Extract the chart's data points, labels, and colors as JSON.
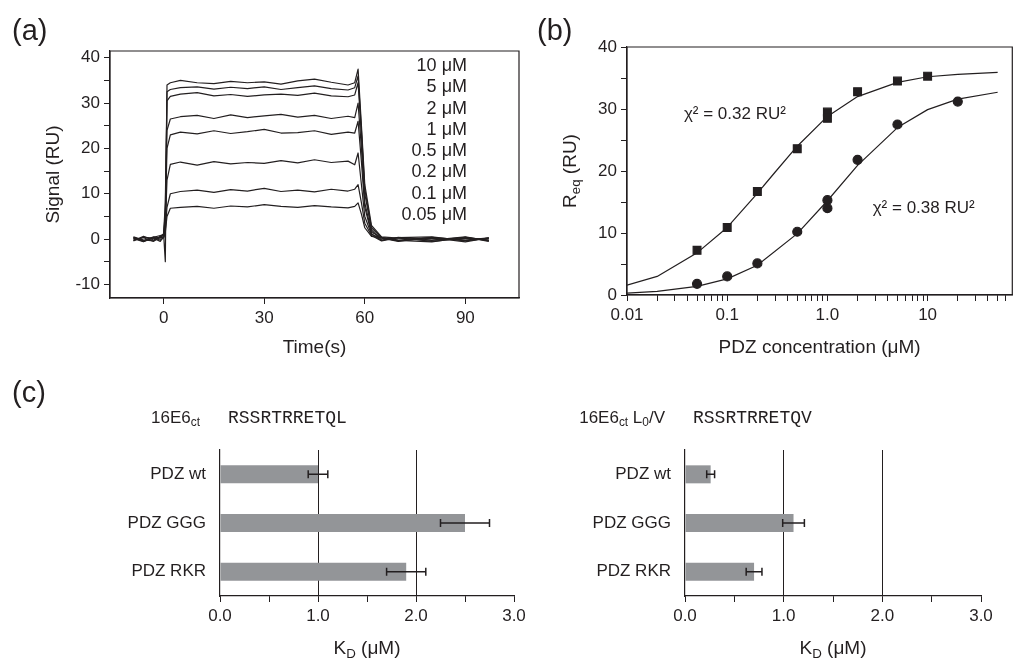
{
  "chart_data": [
    {
      "type": "line",
      "annotations": [
        "(a)",
        "10 μM",
        "5 μM",
        "2 μM",
        "1 μM",
        "0.5 μM",
        "0.2 μM",
        "0.1 μM",
        "0.05 μM"
      ],
      "xlabel": "Time(s)",
      "ylabel": "Signal (RU)",
      "marker": "none",
      "xlim": [
        -16,
        106
      ],
      "ylim": [
        -13,
        41.5
      ],
      "xticks": [
        0,
        30,
        60,
        90
      ],
      "yticks": [
        -10,
        {
          "value": -5,
          "label": null
        },
        0,
        {
          "value": 5,
          "label": null
        },
        10,
        {
          "value": 15,
          "label": null
        },
        20,
        {
          "value": 25,
          "label": null
        },
        30,
        {
          "value": 35,
          "label": null
        },
        40
      ],
      "x": [
        -9,
        -6,
        -3,
        -1,
        0,
        0.5,
        1,
        2,
        5,
        10,
        15,
        20,
        25,
        30,
        35,
        40,
        45,
        50,
        55,
        57,
        58,
        59,
        60,
        62,
        65,
        70,
        80,
        90,
        97
      ],
      "series": [
        {
          "color": "#231f20",
          "values": [
            0.3,
            -0.5,
            0.4,
            0.8,
            1,
            -5,
            34,
            34.5,
            35,
            34.5,
            34.3,
            34.8,
            34.5,
            34.7,
            34.2,
            34.9,
            35.3,
            34.6,
            34,
            34.5,
            37.5,
            25,
            12,
            3,
            0.5,
            0.2,
            -0.3,
            0.4,
            -0.5
          ]
        },
        {
          "color": "#231f20",
          "values": [
            -0.4,
            0.6,
            -0.2,
            0.5,
            1.2,
            8,
            32.5,
            33,
            33.4,
            33.6,
            33.1,
            33.5,
            33.2,
            33.6,
            33,
            33.4,
            33.8,
            33.2,
            32.9,
            33.4,
            36,
            24,
            11,
            2.5,
            0.3,
            -0.4,
            0.2,
            -0.3,
            0.1
          ]
        },
        {
          "color": "#231f20",
          "values": [
            0.2,
            -0.3,
            0.5,
            0.3,
            1,
            6,
            30.5,
            31.5,
            32,
            32.3,
            31.6,
            31.9,
            31.5,
            31.8,
            32,
            31.7,
            32.2,
            31.6,
            31.4,
            31.8,
            34.5,
            23,
            10,
            2,
            -0.2,
            0.3,
            -0.5,
            0.2,
            -0.2
          ]
        },
        {
          "color": "#231f20",
          "values": [
            0.5,
            -0.2,
            -0.4,
            0.6,
            0.8,
            5,
            24,
            26.5,
            27,
            27.3,
            26.6,
            27.4,
            26.8,
            27.2,
            27.5,
            26.9,
            27.3,
            26.6,
            27.1,
            26.8,
            30,
            20,
            8,
            1.5,
            0.4,
            -0.2,
            0.3,
            -0.6,
            0.3
          ]
        },
        {
          "color": "#231f20",
          "values": [
            -0.3,
            0.4,
            0.2,
            -0.5,
            0.6,
            4,
            20,
            23,
            23.6,
            23.2,
            23.9,
            23.3,
            23.7,
            24.2,
            23.4,
            23.5,
            23.9,
            23.1,
            23.6,
            23.4,
            26,
            17,
            7,
            1.2,
            -0.3,
            0.4,
            -0.2,
            0.5,
            -0.4
          ]
        },
        {
          "color": "#231f20",
          "values": [
            0.4,
            -0.4,
            0.3,
            0.2,
            0.5,
            3,
            13,
            16.5,
            17,
            16.3,
            17.1,
            16.6,
            16.9,
            16.7,
            17.3,
            16.8,
            17.5,
            16.9,
            17.2,
            16.4,
            19,
            12,
            5,
            1,
            0.2,
            -0.5,
            0.4,
            -0.2,
            0.3
          ]
        },
        {
          "color": "#231f20",
          "values": [
            -0.2,
            0.3,
            -0.5,
            0.4,
            0.4,
            2,
            7,
            10,
            10.5,
            10.8,
            10.3,
            10.9,
            10.6,
            11.2,
            10.5,
            10.8,
            10.4,
            11,
            10.6,
            11,
            12,
            8,
            3.5,
            0.8,
            -0.4,
            0.3,
            0.5,
            -0.4,
            0.2
          ]
        },
        {
          "color": "#231f20",
          "values": [
            0.1,
            -0.6,
            0.3,
            -0.2,
            0.3,
            1.5,
            5,
            6.8,
            7,
            7.2,
            6.8,
            7.3,
            7.1,
            7.6,
            7.2,
            7,
            7.4,
            7.1,
            6.9,
            7.2,
            8,
            5.5,
            2.5,
            0.6,
            0.3,
            -0.3,
            -0.6,
            0.4,
            -0.3
          ]
        }
      ]
    },
    {
      "type": "scatter",
      "annotations": [
        "(b)",
        "χ² = 0.32 RU²",
        "χ² = 0.38 RU²"
      ],
      "xlabel": "PDZ concentration (μM)",
      "ylabel": "R$_{eq}$ (RU)",
      "log": "x",
      "xlim": [
        0.01,
        70
      ],
      "ylim": [
        0,
        40
      ],
      "xticks": [
        0.01,
        {
          "value": 0.02,
          "label": null
        },
        {
          "value": 0.03,
          "label": null
        },
        {
          "value": 0.04,
          "label": null
        },
        {
          "value": 0.05,
          "label": null
        },
        {
          "value": 0.06,
          "label": null
        },
        {
          "value": 0.07,
          "label": null
        },
        {
          "value": 0.08,
          "label": null
        },
        {
          "value": 0.09,
          "label": null
        },
        0.1,
        {
          "value": 0.2,
          "label": null
        },
        {
          "value": 0.3,
          "label": null
        },
        {
          "value": 0.4,
          "label": null
        },
        {
          "value": 0.5,
          "label": null
        },
        {
          "value": 0.6,
          "label": null
        },
        {
          "value": 0.7,
          "label": null
        },
        {
          "value": 0.8,
          "label": null
        },
        {
          "value": 0.9,
          "label": null
        },
        {
          "value": 1,
          "label": "1.0"
        },
        {
          "value": 2,
          "label": null
        },
        {
          "value": 3,
          "label": null
        },
        {
          "value": 4,
          "label": null
        },
        {
          "value": 5,
          "label": null
        },
        {
          "value": 6,
          "label": null
        },
        {
          "value": 7,
          "label": null
        },
        {
          "value": 8,
          "label": null
        },
        {
          "value": 9,
          "label": null
        },
        10,
        {
          "value": 20,
          "label": null
        },
        {
          "value": 30,
          "label": null
        },
        {
          "value": 40,
          "label": null
        },
        {
          "value": 50,
          "label": null
        },
        {
          "value": 60,
          "label": null
        }
      ],
      "yticks": [
        0,
        {
          "value": 5,
          "label": null
        },
        10,
        {
          "value": 15,
          "label": null
        },
        20,
        {
          "value": 25,
          "label": null
        },
        30,
        {
          "value": 35,
          "label": null
        },
        40
      ],
      "series": [
        {
          "type": "scatter",
          "marker": "square",
          "color": "#231f20",
          "x": [
            0.05,
            0.1,
            0.2,
            0.5,
            1,
            1,
            2,
            5,
            10
          ],
          "values": [
            7.2,
            10.9,
            16.7,
            23.6,
            29.5,
            28.5,
            32.8,
            34.5,
            35.3
          ]
        },
        {
          "type": "scatter",
          "marker": "circle",
          "color": "#231f20",
          "x": [
            0.05,
            0.1,
            0.2,
            0.5,
            1,
            1,
            2,
            5,
            20
          ],
          "values": [
            1.8,
            3.0,
            5.1,
            10.2,
            15.3,
            14.0,
            21.8,
            27.5,
            31.2
          ]
        },
        {
          "type": "line",
          "marker": "none",
          "color": "#231f20",
          "x": [
            0.01,
            0.02,
            0.05,
            0.1,
            0.2,
            0.3,
            0.5,
            1,
            2,
            5,
            10,
            20,
            50
          ],
          "values": [
            1.6,
            3.0,
            6.8,
            10.9,
            16.4,
            19.8,
            24.0,
            28.8,
            32.0,
            34.3,
            35.2,
            35.6,
            35.9
          ]
        },
        {
          "type": "line",
          "marker": "none",
          "color": "#231f20",
          "x": [
            0.01,
            0.02,
            0.05,
            0.1,
            0.2,
            0.5,
            1,
            2,
            5,
            10,
            20,
            50
          ],
          "values": [
            0.3,
            0.6,
            1.4,
            2.6,
            4.8,
            9.9,
            15.2,
            20.9,
            27.0,
            29.9,
            31.6,
            32.7
          ]
        }
      ]
    },
    {
      "type": "bar",
      "orientation": "horizontal",
      "annotations": [
        "(c)"
      ],
      "title": "16E6$_{ct}$",
      "subtitle": "RSSRTRRETQL",
      "xlabel": "K$_{D}$ (μM)",
      "categories": [
        "PDZ wt",
        "PDZ GGG",
        "PDZ RKR"
      ],
      "values": [
        1.0,
        2.5,
        1.9
      ],
      "errors": [
        0.1,
        0.25,
        0.2
      ],
      "color": "#939598",
      "xlim": [
        0,
        3
      ],
      "xticks": [
        {
          "value": 0,
          "label": "0.0"
        },
        {
          "value": 0.5,
          "label": null
        },
        {
          "value": 1,
          "label": "1.0"
        },
        {
          "value": 1.5,
          "label": null
        },
        {
          "value": 2,
          "label": "2.0"
        },
        {
          "value": 2.5,
          "label": null
        },
        {
          "value": 3,
          "label": "3.0"
        }
      ],
      "grid": "x"
    },
    {
      "type": "bar",
      "orientation": "horizontal",
      "title": "16E6$_{ct}$ L$_{0}$/V",
      "subtitle": "RSSRTRRETQV",
      "xlabel": "K$_{D}$ (μM)",
      "categories": [
        "PDZ wt",
        "PDZ GGG",
        "PDZ RKR"
      ],
      "values": [
        0.26,
        1.1,
        0.7
      ],
      "errors": [
        0.04,
        0.11,
        0.08
      ],
      "color": "#939598",
      "xlim": [
        0,
        3
      ],
      "xticks": [
        {
          "value": 0,
          "label": "0.0"
        },
        {
          "value": 0.5,
          "label": null
        },
        {
          "value": 1,
          "label": "1.0"
        },
        {
          "value": 1.5,
          "label": null
        },
        {
          "value": 2,
          "label": "2.0"
        },
        {
          "value": 2.5,
          "label": null
        },
        {
          "value": 3,
          "label": "3.0"
        }
      ],
      "grid": "x"
    }
  ]
}
